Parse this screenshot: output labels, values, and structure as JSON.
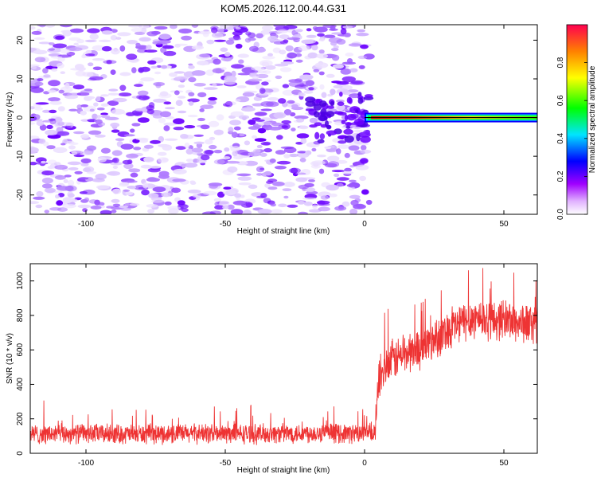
{
  "title": "KOM5.2026.112.00.44.G31",
  "chart_data": [
    {
      "type": "heatmap",
      "xlabel": "Height of straight line (km)",
      "ylabel": "Frequency (Hz)",
      "xlim": [
        -120,
        62
      ],
      "ylim": [
        -25,
        24
      ],
      "x_ticks": [
        -100,
        -50,
        0,
        50
      ],
      "y_ticks": [
        20,
        10,
        0,
        -10,
        -20
      ],
      "colorbar": {
        "label": "Normalized spectral amplitude",
        "range": [
          0.0,
          1.0
        ],
        "ticks": [
          0.0,
          0.2,
          0.4,
          0.6,
          0.8
        ],
        "tick_labels": [
          "0.0",
          "0.2",
          "0.4",
          "0.6",
          "0.8"
        ],
        "colors": [
          "#ffffff",
          "#b400ff",
          "#0000ff",
          "#00ffff",
          "#00ff00",
          "#ffff00",
          "#ff8000",
          "#ff0050"
        ]
      },
      "features": [
        {
          "name": "noise-floor",
          "x_range": [
            -120,
            0
          ],
          "y_range": [
            -25,
            24
          ],
          "amplitude_range": [
            0.0,
            0.2
          ]
        },
        {
          "name": "carrier-line",
          "x_range": [
            0,
            62
          ],
          "frequency": 0,
          "peak_amplitude": 0.95
        }
      ]
    },
    {
      "type": "line",
      "xlabel": "Height of straight line (km)",
      "ylabel": "SNR (10 * v/v)",
      "xlim": [
        -120,
        62
      ],
      "ylim": [
        0,
        1100
      ],
      "x_ticks": [
        -100,
        -50,
        0,
        50
      ],
      "y_ticks": [
        0,
        200,
        400,
        600,
        800,
        1000
      ],
      "series": [
        {
          "name": "SNR",
          "color": "#ee3333",
          "x": [
            -120,
            -100,
            -80,
            -60,
            -40,
            -20,
            0,
            4,
            5,
            10,
            15,
            20,
            25,
            30,
            35,
            40,
            45,
            50,
            55,
            60,
            62
          ],
          "values": [
            110,
            115,
            110,
            115,
            112,
            118,
            115,
            120,
            440,
            540,
            580,
            610,
            660,
            720,
            760,
            790,
            770,
            780,
            760,
            750,
            760
          ]
        }
      ]
    }
  ]
}
